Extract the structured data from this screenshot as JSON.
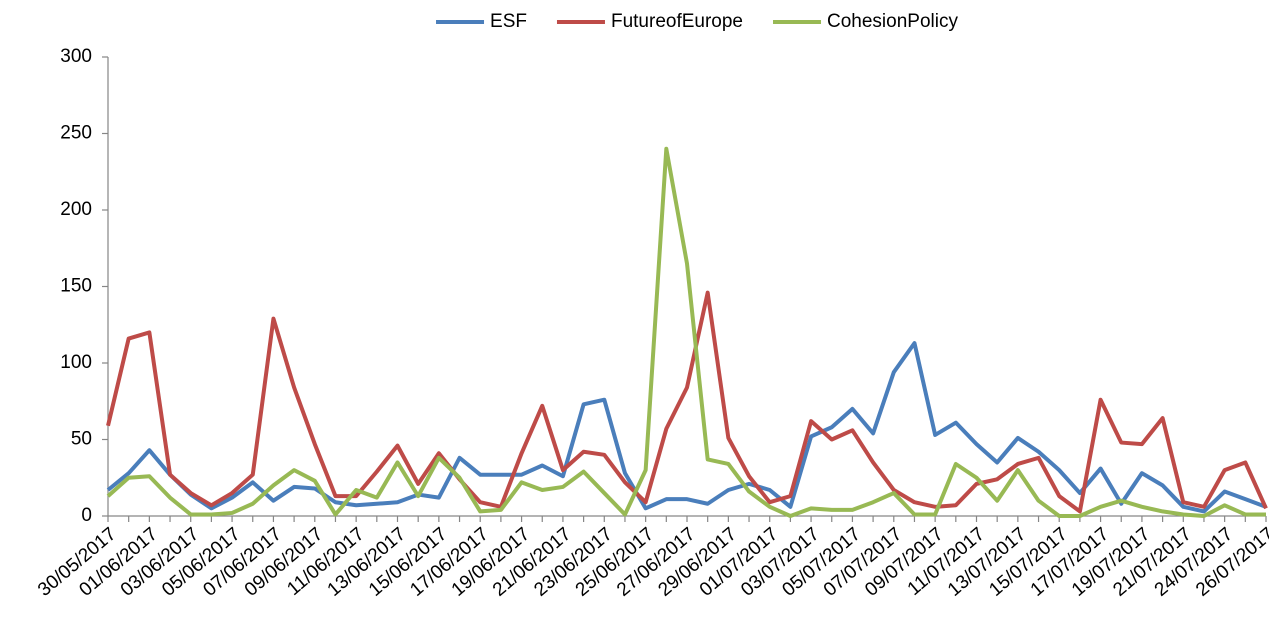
{
  "chart_data": {
    "type": "line",
    "categories": [
      "30/05/2017",
      null,
      "01/06/2017",
      null,
      "03/06/2017",
      null,
      "05/06/2017",
      null,
      "07/06/2017",
      null,
      "09/06/2017",
      null,
      "11/06/2017",
      null,
      "13/06/2017",
      null,
      "15/06/2017",
      null,
      "17/06/2017",
      null,
      "19/06/2017",
      null,
      "21/06/2017",
      null,
      "23/06/2017",
      null,
      "25/06/2017",
      null,
      "27/06/2017",
      null,
      "29/06/2017",
      null,
      "01/07/2017",
      null,
      "03/07/2017",
      null,
      "05/07/2017",
      null,
      "07/07/2017",
      null,
      "09/07/2017",
      null,
      "11/07/2017",
      null,
      "13/07/2017",
      null,
      "15/07/2017",
      null,
      "17/07/2017",
      null,
      "19/07/2017",
      null,
      "21/07/2017",
      null,
      "24/07/2017",
      null,
      "26/07/2017"
    ],
    "series": [
      {
        "name": "ESF",
        "color": "#4a7ebb",
        "values": [
          17,
          28,
          43,
          27,
          14,
          5,
          12,
          22,
          10,
          19,
          18,
          9,
          7,
          8,
          9,
          14,
          12,
          38,
          27,
          27,
          27,
          33,
          26,
          73,
          76,
          28,
          5,
          11,
          11,
          8,
          17,
          21,
          17,
          6,
          52,
          58,
          70,
          54,
          94,
          113,
          53,
          61,
          47,
          35,
          51,
          42,
          30,
          15,
          31,
          8,
          28,
          20,
          6,
          3,
          16,
          11,
          6
        ]
      },
      {
        "name": "FutureofEurope",
        "color": "#be4b48",
        "values": [
          59,
          116,
          120,
          27,
          15,
          7,
          15,
          27,
          129,
          84,
          47,
          13,
          13,
          29,
          46,
          21,
          41,
          24,
          9,
          6,
          41,
          72,
          30,
          42,
          40,
          22,
          9,
          57,
          84,
          146,
          51,
          26,
          9,
          13,
          62,
          50,
          56,
          35,
          17,
          9,
          6,
          7,
          21,
          24,
          34,
          38,
          13,
          3,
          76,
          48,
          47,
          64,
          9,
          6,
          30,
          35,
          5
        ]
      },
      {
        "name": "CohesionPolicy",
        "color": "#98b954",
        "values": [
          13,
          25,
          26,
          12,
          1,
          1,
          2,
          8,
          20,
          30,
          23,
          1,
          17,
          12,
          35,
          13,
          38,
          25,
          3,
          4,
          22,
          17,
          19,
          29,
          15,
          1,
          30,
          240,
          165,
          37,
          34,
          16,
          6,
          0,
          5,
          4,
          4,
          9,
          15,
          1,
          1,
          34,
          25,
          10,
          30,
          10,
          0,
          0,
          6,
          10,
          6,
          3,
          1,
          0,
          7,
          1,
          1
        ]
      }
    ],
    "ylim": [
      0,
      300
    ],
    "yticks": [
      0,
      50,
      100,
      150,
      200,
      250,
      300
    ],
    "legend": "top"
  }
}
